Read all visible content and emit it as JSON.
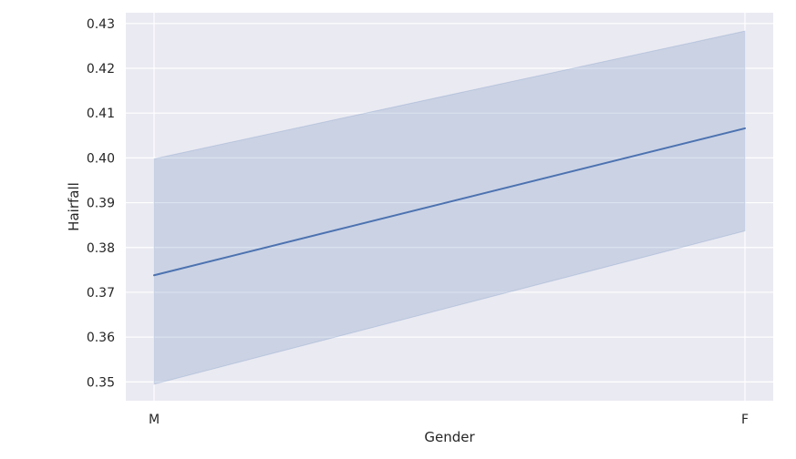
{
  "chart_data": {
    "type": "line",
    "title": "",
    "xlabel": "Gender",
    "ylabel": "Hairfall",
    "categories": [
      "M",
      "F"
    ],
    "series": [
      {
        "values": [
          0.3738,
          0.4066
        ],
        "ci_lower": [
          0.3495,
          0.3837
        ],
        "ci_upper": [
          0.3998,
          0.4283
        ]
      }
    ],
    "ylim": [
      0.3458,
      0.4324
    ],
    "yticks": [
      0.35,
      0.36,
      0.37,
      0.38,
      0.39,
      0.4,
      0.41,
      0.42,
      0.43
    ],
    "ytick_labels": [
      "0.35",
      "0.36",
      "0.37",
      "0.38",
      "0.39",
      "0.40",
      "0.41",
      "0.42",
      "0.43"
    ],
    "grid": true,
    "legend": "none",
    "colors": {
      "background": "#eaeaf2",
      "grid": "#ffffff",
      "line": "#4c72b0",
      "band": "#4c72b0"
    }
  }
}
